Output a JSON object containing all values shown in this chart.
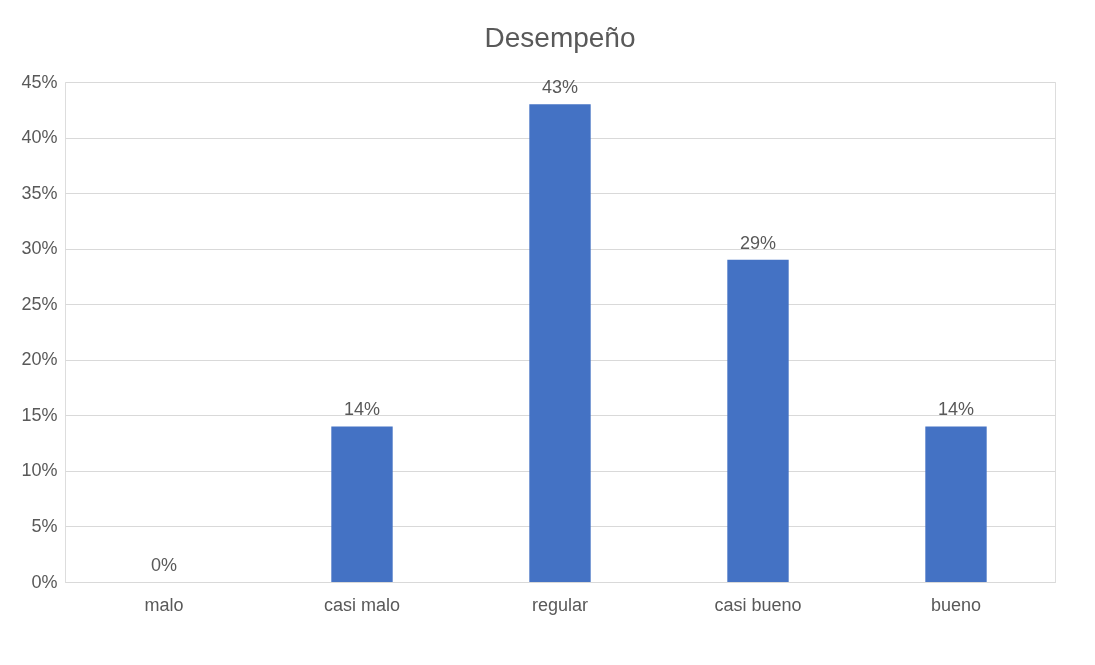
{
  "chart_data": {
    "type": "bar",
    "title": "Desempeño",
    "categories": [
      "malo",
      "casi malo",
      "regular",
      "casi bueno",
      "bueno"
    ],
    "values": [
      0,
      14,
      43,
      29,
      14
    ],
    "color": "#4472c4",
    "ylim": [
      0,
      45
    ],
    "yticks": [
      {
        "value": 0,
        "label": "0%"
      },
      {
        "value": 5,
        "label": "5%"
      },
      {
        "value": 10,
        "label": "10%"
      },
      {
        "value": 15,
        "label": "15%"
      },
      {
        "value": 20,
        "label": "20%"
      },
      {
        "value": 25,
        "label": "25%"
      },
      {
        "value": 30,
        "label": "30%"
      },
      {
        "value": 35,
        "label": "35%"
      },
      {
        "value": 40,
        "label": "40%"
      },
      {
        "value": 45,
        "label": "45%"
      }
    ],
    "value_labels": [
      "0%",
      "14%",
      "43%",
      "29%",
      "14%"
    ],
    "grid": "y"
  }
}
